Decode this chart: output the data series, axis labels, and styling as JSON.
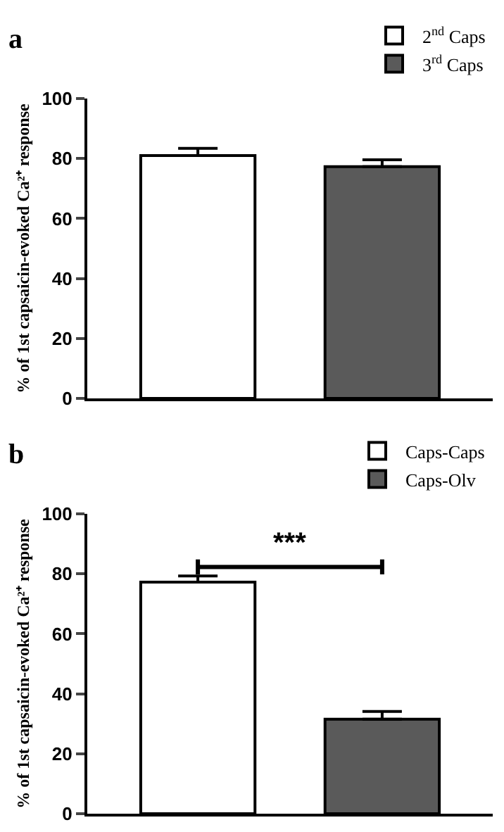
{
  "chart_data": [
    {
      "type": "bar",
      "title": "a",
      "ylabel": "% of 1st capsaicin-evoked Ca²⁺ response",
      "categories": [
        null,
        null
      ],
      "ylim": [
        0,
        100
      ],
      "yticks": [
        0,
        20,
        40,
        60,
        80,
        100
      ],
      "grid": false,
      "legend": "top right",
      "tick_labels": "y",
      "series": [
        {
          "name": "2$^{nd}$ Caps",
          "color": "#ffffff",
          "values": [
            81,
            null
          ],
          "errors": [
            [
              81,
              83.4
            ],
            null
          ]
        },
        {
          "name": "3$^{rd}$ Caps",
          "color": "#5a5a5a",
          "values": [
            null,
            77.3
          ],
          "errors": [
            null,
            [
              77.3,
              79.6
            ]
          ]
        }
      ]
    },
    {
      "type": "bar",
      "title": "b",
      "ylabel": "% of 1st capsaicin-evoked Ca²⁺ response",
      "categories": [
        null,
        null
      ],
      "ylim": [
        0,
        100
      ],
      "yticks": [
        0,
        20,
        40,
        60,
        80,
        100
      ],
      "grid": false,
      "legend": "top right",
      "tick_labels": "y",
      "annotations": [
        "***"
      ],
      "series": [
        {
          "name": "Caps-Caps",
          "color": "#ffffff",
          "values": [
            77.2,
            null
          ],
          "errors": [
            [
              77.2,
              79.3
            ],
            null
          ]
        },
        {
          "name": "Caps-Olv",
          "color": "#5a5a5a",
          "values": [
            null,
            31.5
          ],
          "errors": [
            null,
            [
              31.5,
              34.1
            ]
          ]
        }
      ]
    }
  ]
}
